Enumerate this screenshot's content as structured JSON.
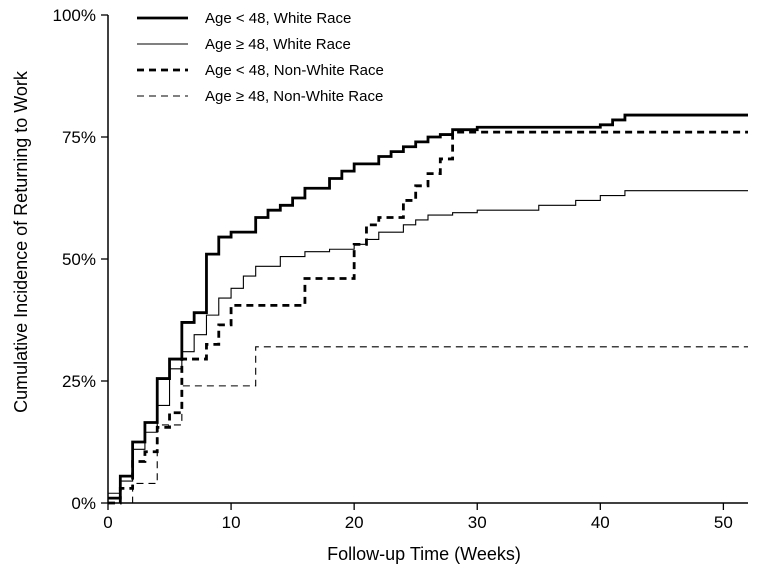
{
  "chart_data": {
    "type": "line",
    "step": true,
    "xlabel": "Follow-up Time (Weeks)",
    "ylabel": "Cumulative Incidence of Returning to Work",
    "xlim": [
      0,
      52
    ],
    "ylim": [
      0,
      100
    ],
    "xticks": [
      0,
      10,
      20,
      30,
      40,
      50
    ],
    "yticks": [
      0,
      25,
      50,
      75,
      100
    ],
    "ytick_labels": [
      "0%",
      "25%",
      "50%",
      "75%",
      "100%"
    ],
    "grid": false,
    "legend_position": "top-left",
    "series": [
      {
        "name": "Age < 48, White Race",
        "color": "#000000",
        "style": "solid-thick",
        "x": [
          0,
          1,
          2,
          3,
          4,
          5,
          6,
          7,
          8,
          9,
          10,
          12,
          13,
          14,
          15,
          16,
          18,
          19,
          20,
          22,
          23,
          24,
          25,
          26,
          27,
          28,
          30,
          40,
          41,
          42,
          52
        ],
        "y": [
          1,
          5.5,
          12.5,
          16.5,
          25.5,
          29.5,
          37,
          39,
          51,
          54.5,
          55.5,
          58.5,
          60,
          61,
          62.5,
          64.5,
          66.5,
          68,
          69.5,
          71,
          72,
          73,
          74,
          75,
          75.5,
          76.5,
          77,
          77.5,
          78.5,
          79.5,
          79.5
        ]
      },
      {
        "name": "Age ≥ 48, White Race",
        "color": "#000000",
        "style": "solid-thin",
        "x": [
          0,
          1,
          2,
          3,
          4,
          5,
          6,
          7,
          8,
          9,
          10,
          11,
          12,
          14,
          16,
          18,
          20,
          21,
          22,
          24,
          25,
          26,
          28,
          30,
          35,
          38,
          40,
          42,
          52
        ],
        "y": [
          2,
          4.5,
          11,
          14.5,
          20,
          27.5,
          31,
          34.5,
          38.5,
          42,
          44,
          46.5,
          48.5,
          50.5,
          51.5,
          52,
          53,
          54,
          55.5,
          57,
          58,
          59,
          59.5,
          60,
          61,
          62,
          63,
          64,
          64
        ]
      },
      {
        "name": "Age < 48, Non-White Race",
        "color": "#000000",
        "style": "dashed-thick",
        "x": [
          0,
          1,
          2,
          3,
          4,
          5,
          6,
          8,
          9,
          10,
          16,
          20,
          21,
          22,
          24,
          25,
          26,
          27,
          28,
          52
        ],
        "y": [
          0,
          3,
          8.5,
          10.5,
          15.5,
          18.5,
          29.5,
          32.5,
          36.5,
          40.5,
          46,
          53,
          57,
          58.5,
          62,
          65,
          67.5,
          70.5,
          76,
          76
        ]
      },
      {
        "name": "Age ≥ 48, Non-White Race",
        "color": "#000000",
        "style": "dashed-thin",
        "x": [
          0,
          2,
          4,
          6,
          12,
          52
        ],
        "y": [
          0,
          4,
          16,
          24,
          32,
          32
        ]
      }
    ]
  }
}
